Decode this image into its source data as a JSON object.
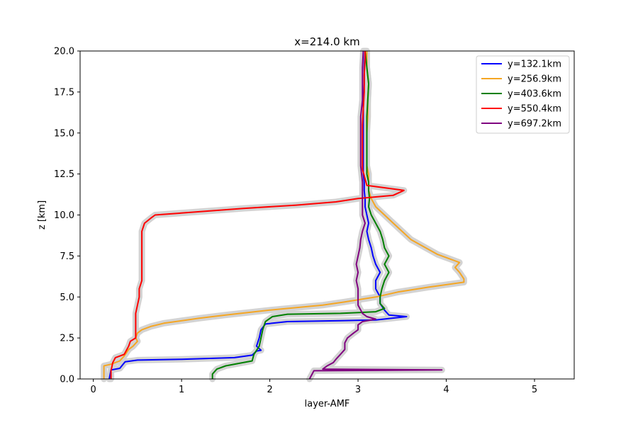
{
  "chart_data": {
    "type": "line",
    "title": "x=214.0 km",
    "xlabel": "layer-AMF",
    "ylabel": "z [km]",
    "xlim": [
      -0.15,
      5.45
    ],
    "ylim": [
      0,
      20
    ],
    "xticks": [
      "0",
      "1",
      "2",
      "3",
      "4",
      "5"
    ],
    "yticks": [
      "0.0",
      "2.5",
      "5.0",
      "7.5",
      "10.0",
      "12.5",
      "15.0",
      "17.5",
      "20.0"
    ],
    "grid": false,
    "legend_position": "top-right",
    "uncertainty_band_color": "#d3d3d3",
    "series": [
      {
        "name": "y=132.1km",
        "color": "#0000ff",
        "points": [
          [
            0.18,
            0.0
          ],
          [
            0.2,
            0.55
          ],
          [
            0.3,
            0.65
          ],
          [
            0.36,
            1.05
          ],
          [
            0.5,
            1.15
          ],
          [
            1.0,
            1.2
          ],
          [
            1.6,
            1.3
          ],
          [
            1.8,
            1.45
          ],
          [
            1.85,
            1.7
          ],
          [
            1.9,
            1.75
          ],
          [
            1.85,
            2.0
          ],
          [
            1.88,
            2.5
          ],
          [
            1.9,
            3.0
          ],
          [
            1.95,
            3.35
          ],
          [
            2.2,
            3.5
          ],
          [
            2.8,
            3.55
          ],
          [
            3.2,
            3.6
          ],
          [
            3.55,
            3.8
          ],
          [
            3.35,
            3.9
          ],
          [
            3.3,
            4.2
          ],
          [
            3.25,
            4.6
          ],
          [
            3.25,
            5.0
          ],
          [
            3.2,
            5.5
          ],
          [
            3.2,
            6.0
          ],
          [
            3.25,
            6.5
          ],
          [
            3.2,
            7.0
          ],
          [
            3.17,
            7.5
          ],
          [
            3.15,
            8.0
          ],
          [
            3.12,
            8.5
          ],
          [
            3.1,
            9.0
          ],
          [
            3.12,
            9.5
          ],
          [
            3.1,
            10.0
          ],
          [
            3.08,
            10.5
          ],
          [
            3.08,
            11.0
          ],
          [
            3.07,
            11.5
          ],
          [
            3.07,
            12.0
          ],
          [
            3.06,
            12.5
          ],
          [
            3.06,
            13.0
          ],
          [
            3.06,
            14.0
          ],
          [
            3.06,
            15.0
          ],
          [
            3.06,
            16.0
          ],
          [
            3.06,
            17.0
          ],
          [
            3.07,
            18.0
          ],
          [
            3.07,
            19.0
          ],
          [
            3.08,
            20.0
          ]
        ]
      },
      {
        "name": "y=256.9km",
        "color": "#f5a623",
        "points": [
          [
            0.12,
            0.0
          ],
          [
            0.12,
            0.8
          ],
          [
            0.2,
            0.9
          ],
          [
            0.3,
            1.1
          ],
          [
            0.35,
            1.4
          ],
          [
            0.4,
            1.8
          ],
          [
            0.45,
            2.0
          ],
          [
            0.5,
            2.3
          ],
          [
            0.48,
            2.5
          ],
          [
            0.5,
            2.8
          ],
          [
            0.55,
            3.0
          ],
          [
            0.65,
            3.2
          ],
          [
            0.8,
            3.4
          ],
          [
            1.2,
            3.7
          ],
          [
            1.5,
            3.9
          ],
          [
            2.0,
            4.2
          ],
          [
            2.6,
            4.5
          ],
          [
            2.85,
            4.7
          ],
          [
            3.2,
            5.0
          ],
          [
            3.45,
            5.3
          ],
          [
            3.8,
            5.6
          ],
          [
            4.2,
            5.9
          ],
          [
            4.2,
            6.1
          ],
          [
            4.15,
            6.5
          ],
          [
            4.1,
            6.8
          ],
          [
            4.15,
            7.1
          ],
          [
            3.9,
            7.6
          ],
          [
            3.6,
            8.5
          ],
          [
            3.4,
            9.5
          ],
          [
            3.3,
            10.0
          ],
          [
            3.2,
            10.5
          ],
          [
            3.15,
            11.0
          ],
          [
            3.12,
            11.5
          ],
          [
            3.12,
            12.0
          ],
          [
            3.12,
            12.5
          ],
          [
            3.1,
            13.0
          ],
          [
            3.1,
            14.0
          ],
          [
            3.1,
            15.0
          ],
          [
            3.11,
            16.0
          ],
          [
            3.11,
            17.0
          ],
          [
            3.12,
            18.0
          ],
          [
            3.1,
            19.0
          ],
          [
            3.1,
            20.0
          ]
        ]
      },
      {
        "name": "y=403.6km",
        "color": "#008000",
        "points": [
          [
            1.35,
            0.0
          ],
          [
            1.35,
            0.3
          ],
          [
            1.4,
            0.6
          ],
          [
            1.5,
            0.8
          ],
          [
            1.65,
            0.95
          ],
          [
            1.8,
            1.1
          ],
          [
            1.82,
            1.5
          ],
          [
            1.88,
            2.0
          ],
          [
            1.9,
            2.5
          ],
          [
            1.92,
            3.0
          ],
          [
            1.95,
            3.5
          ],
          [
            2.03,
            3.8
          ],
          [
            2.2,
            3.95
          ],
          [
            2.8,
            4.0
          ],
          [
            3.2,
            4.1
          ],
          [
            3.3,
            4.3
          ],
          [
            3.25,
            4.6
          ],
          [
            3.25,
            5.0
          ],
          [
            3.27,
            5.5
          ],
          [
            3.3,
            6.0
          ],
          [
            3.35,
            6.5
          ],
          [
            3.3,
            7.0
          ],
          [
            3.35,
            7.5
          ],
          [
            3.3,
            8.0
          ],
          [
            3.28,
            8.5
          ],
          [
            3.25,
            9.0
          ],
          [
            3.2,
            9.5
          ],
          [
            3.15,
            10.0
          ],
          [
            3.12,
            10.5
          ],
          [
            3.13,
            11.0
          ],
          [
            3.12,
            11.5
          ],
          [
            3.12,
            12.0
          ],
          [
            3.1,
            12.5
          ],
          [
            3.1,
            13.0
          ],
          [
            3.1,
            14.0
          ],
          [
            3.1,
            15.0
          ],
          [
            3.1,
            16.0
          ],
          [
            3.11,
            17.0
          ],
          [
            3.12,
            18.0
          ],
          [
            3.1,
            19.0
          ],
          [
            3.08,
            20.0
          ]
        ]
      },
      {
        "name": "y=550.4km",
        "color": "#ff0000",
        "points": [
          [
            0.2,
            0.0
          ],
          [
            0.2,
            0.5
          ],
          [
            0.22,
            1.0
          ],
          [
            0.25,
            1.3
          ],
          [
            0.35,
            1.5
          ],
          [
            0.4,
            2.0
          ],
          [
            0.42,
            2.3
          ],
          [
            0.48,
            2.5
          ],
          [
            0.48,
            3.0
          ],
          [
            0.48,
            3.5
          ],
          [
            0.48,
            4.0
          ],
          [
            0.5,
            4.5
          ],
          [
            0.52,
            5.0
          ],
          [
            0.52,
            5.5
          ],
          [
            0.55,
            6.0
          ],
          [
            0.55,
            6.5
          ],
          [
            0.55,
            7.0
          ],
          [
            0.55,
            7.5
          ],
          [
            0.55,
            8.0
          ],
          [
            0.55,
            8.5
          ],
          [
            0.55,
            9.0
          ],
          [
            0.58,
            9.5
          ],
          [
            0.65,
            9.8
          ],
          [
            0.7,
            10.0
          ],
          [
            1.2,
            10.2
          ],
          [
            1.7,
            10.4
          ],
          [
            2.3,
            10.6
          ],
          [
            2.75,
            10.8
          ],
          [
            3.0,
            11.0
          ],
          [
            3.4,
            11.2
          ],
          [
            3.52,
            11.5
          ],
          [
            3.1,
            11.8
          ],
          [
            3.08,
            12.2
          ],
          [
            3.05,
            12.8
          ],
          [
            3.05,
            13.5
          ],
          [
            3.05,
            14.5
          ],
          [
            3.05,
            15.5
          ],
          [
            3.06,
            16.5
          ],
          [
            3.07,
            17.5
          ],
          [
            3.07,
            18.5
          ],
          [
            3.08,
            19.5
          ],
          [
            3.08,
            20.0
          ]
        ]
      },
      {
        "name": "y=697.2km",
        "color": "#800080",
        "points": [
          [
            2.45,
            0.0
          ],
          [
            2.48,
            0.3
          ],
          [
            2.5,
            0.5
          ],
          [
            3.95,
            0.55
          ],
          [
            2.6,
            0.6
          ],
          [
            2.65,
            0.8
          ],
          [
            2.72,
            1.0
          ],
          [
            2.75,
            1.2
          ],
          [
            2.8,
            1.5
          ],
          [
            2.85,
            1.8
          ],
          [
            2.85,
            2.2
          ],
          [
            2.88,
            2.5
          ],
          [
            2.95,
            2.8
          ],
          [
            3.0,
            3.0
          ],
          [
            3.0,
            3.3
          ],
          [
            3.05,
            3.5
          ],
          [
            3.2,
            3.65
          ],
          [
            3.1,
            3.8
          ],
          [
            3.05,
            4.0
          ],
          [
            3.0,
            4.5
          ],
          [
            3.0,
            5.0
          ],
          [
            3.0,
            5.5
          ],
          [
            2.98,
            6.0
          ],
          [
            3.0,
            6.5
          ],
          [
            2.98,
            7.0
          ],
          [
            3.0,
            7.5
          ],
          [
            3.02,
            8.0
          ],
          [
            3.03,
            8.5
          ],
          [
            3.05,
            9.0
          ],
          [
            3.08,
            9.5
          ],
          [
            3.05,
            10.0
          ],
          [
            3.05,
            10.5
          ],
          [
            3.05,
            11.0
          ],
          [
            3.05,
            11.5
          ],
          [
            3.05,
            12.0
          ],
          [
            3.03,
            13.0
          ],
          [
            3.03,
            14.0
          ],
          [
            3.03,
            15.0
          ],
          [
            3.03,
            16.0
          ],
          [
            3.05,
            17.0
          ],
          [
            3.05,
            18.0
          ],
          [
            3.05,
            19.0
          ],
          [
            3.06,
            20.0
          ]
        ]
      }
    ]
  }
}
